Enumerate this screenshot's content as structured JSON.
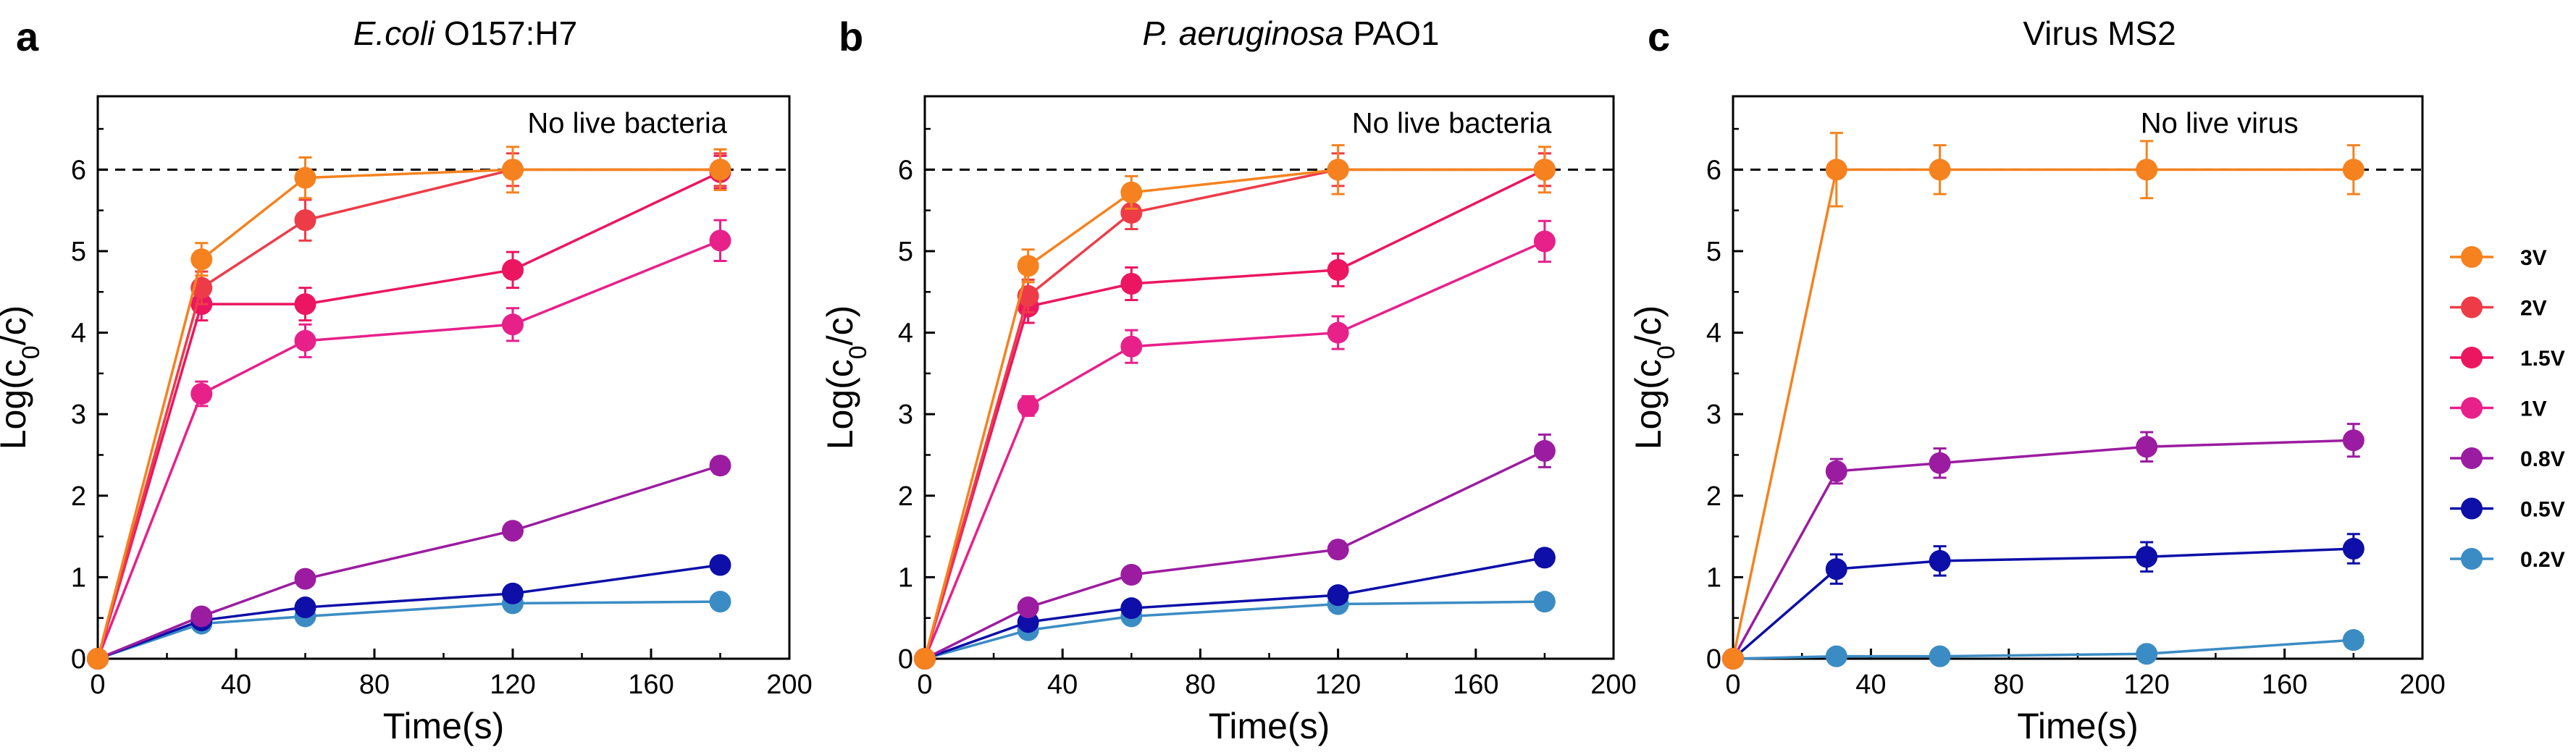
{
  "figure": {
    "y_tick_labels": [
      "0",
      "1",
      "2",
      "3",
      "4",
      "5",
      "6"
    ],
    "x_tick_labels": [
      "0",
      "40",
      "80",
      "120",
      "160",
      "200"
    ]
  },
  "legend": {
    "position": "right of panel c",
    "entries": [
      {
        "label": "3V",
        "color": "#F5821F"
      },
      {
        "label": "2V",
        "color": "#EE3B48"
      },
      {
        "label": "1.5V",
        "color": "#EC1560"
      },
      {
        "label": "1V",
        "color": "#E8208A"
      },
      {
        "label": "0.8V",
        "color": "#9B1CA0"
      },
      {
        "label": "0.5V",
        "color": "#0D0FA8"
      },
      {
        "label": "0.2V",
        "color": "#3B8CC4"
      }
    ]
  },
  "chart_data": [
    {
      "panel": "a",
      "type": "line",
      "title": {
        "italic": "E.coli",
        "normal": " O157:H7"
      },
      "xlabel": "Time(s)",
      "ylabel": {
        "base": "Log(c",
        "sub": "0",
        "tail": "/c)"
      },
      "xlim": [
        0,
        200
      ],
      "ylim": [
        0,
        6.9
      ],
      "grid": false,
      "reference_line": {
        "y": 6,
        "style": "dashed"
      },
      "annotation": "No live bacteria",
      "x": [
        0,
        30,
        60,
        120,
        180
      ],
      "series": [
        {
          "name": "3V",
          "values": [
            0,
            4.9,
            5.9,
            6.0,
            6.0
          ],
          "errors": [
            0,
            0.2,
            0.25,
            0.28,
            0.25
          ]
        },
        {
          "name": "2V",
          "values": [
            0,
            4.55,
            5.38,
            6.0,
            6.0
          ],
          "errors": [
            0,
            0.2,
            0.25,
            0.2,
            0.2
          ]
        },
        {
          "name": "1.5V",
          "values": [
            0,
            4.35,
            4.35,
            4.77,
            5.97
          ],
          "errors": [
            0,
            0.2,
            0.2,
            0.22,
            0.2
          ]
        },
        {
          "name": "1V",
          "values": [
            0,
            3.25,
            3.9,
            4.1,
            5.13
          ],
          "errors": [
            0,
            0.15,
            0.2,
            0.2,
            0.25
          ]
        },
        {
          "name": "0.8V",
          "values": [
            0,
            0.52,
            0.98,
            1.57,
            2.37
          ],
          "errors": [
            0,
            0.05,
            0.06,
            0.08,
            0.1
          ]
        },
        {
          "name": "0.5V",
          "values": [
            0,
            0.47,
            0.63,
            0.8,
            1.15
          ],
          "errors": [
            0,
            0.05,
            0.06,
            0.08,
            0.08
          ]
        },
        {
          "name": "0.2V",
          "values": [
            0,
            0.43,
            0.52,
            0.68,
            0.7
          ],
          "errors": [
            0,
            0.05,
            0.05,
            0.05,
            0.05
          ]
        }
      ]
    },
    {
      "panel": "b",
      "type": "line",
      "title": {
        "italic": "P. aeruginosa",
        "normal": " PAO1"
      },
      "xlabel": "Time(s)",
      "ylabel": {
        "base": "Log(c",
        "sub": "0",
        "tail": "/c)"
      },
      "xlim": [
        0,
        200
      ],
      "ylim": [
        0,
        6.9
      ],
      "grid": false,
      "reference_line": {
        "y": 6,
        "style": "dashed"
      },
      "annotation": "No live bacteria",
      "x": [
        0,
        30,
        60,
        120,
        180
      ],
      "series": [
        {
          "name": "3V",
          "values": [
            0,
            4.82,
            5.72,
            6.0,
            6.0
          ],
          "errors": [
            0,
            0.2,
            0.2,
            0.3,
            0.28
          ]
        },
        {
          "name": "2V",
          "values": [
            0,
            4.45,
            5.47,
            6.0,
            6.0
          ],
          "errors": [
            0,
            0.2,
            0.2,
            0.2,
            0.2
          ]
        },
        {
          "name": "1.5V",
          "values": [
            0,
            4.32,
            4.6,
            4.77,
            6.0
          ],
          "errors": [
            0,
            0.2,
            0.2,
            0.2,
            0.2
          ]
        },
        {
          "name": "1V",
          "values": [
            0,
            3.1,
            3.83,
            4.0,
            5.12
          ],
          "errors": [
            0,
            0.12,
            0.2,
            0.2,
            0.25
          ]
        },
        {
          "name": "0.8V",
          "values": [
            0,
            0.63,
            1.03,
            1.34,
            2.55
          ],
          "errors": [
            0,
            0.08,
            0.08,
            0.1,
            0.2
          ]
        },
        {
          "name": "0.5V",
          "values": [
            0,
            0.45,
            0.62,
            0.78,
            1.24
          ],
          "errors": [
            0,
            0.05,
            0.06,
            0.08,
            0.1
          ]
        },
        {
          "name": "0.2V",
          "values": [
            0,
            0.35,
            0.52,
            0.67,
            0.7
          ],
          "errors": [
            0,
            0.05,
            0.05,
            0.05,
            0.05
          ]
        }
      ]
    },
    {
      "panel": "c",
      "type": "line",
      "title": {
        "italic": "",
        "normal": "Virus MS2"
      },
      "xlabel": "Time(s)",
      "ylabel": {
        "base": "Log(c",
        "sub": "0",
        "tail": "/c)"
      },
      "xlim": [
        0,
        200
      ],
      "ylim": [
        0,
        6.9
      ],
      "grid": false,
      "reference_line": {
        "y": 6,
        "style": "dashed"
      },
      "annotation": "No live virus",
      "x": [
        0,
        30,
        60,
        120,
        180
      ],
      "series": [
        {
          "name": "3V",
          "values": [
            0,
            6.0,
            6.0,
            6.0,
            6.0
          ],
          "errors": [
            0,
            0.45,
            0.3,
            0.35,
            0.3
          ]
        },
        {
          "name": "0.8V",
          "values": [
            0,
            2.3,
            2.4,
            2.6,
            2.68
          ],
          "errors": [
            0,
            0.15,
            0.18,
            0.18,
            0.2
          ]
        },
        {
          "name": "0.5V",
          "values": [
            0,
            1.1,
            1.2,
            1.25,
            1.35
          ],
          "errors": [
            0,
            0.18,
            0.18,
            0.18,
            0.18
          ]
        },
        {
          "name": "0.2V",
          "values": [
            0,
            0.03,
            0.03,
            0.06,
            0.23
          ],
          "errors": [
            0,
            0.02,
            0.02,
            0.03,
            0.05
          ]
        }
      ]
    }
  ]
}
